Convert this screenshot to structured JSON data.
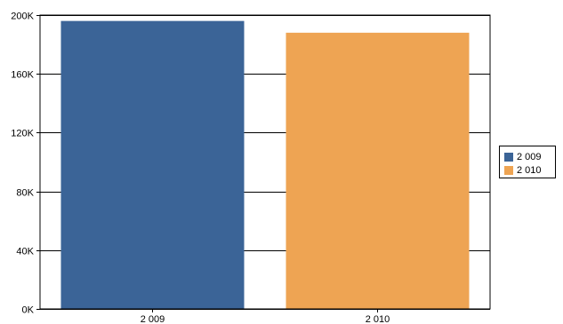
{
  "chart_data": {
    "type": "bar",
    "categories": [
      "2 009",
      "2 010"
    ],
    "values": [
      196000,
      188000
    ],
    "colors": [
      "#3b6497",
      "#eea453"
    ],
    "ylim": [
      0,
      200000
    ],
    "yticks": [
      0,
      40000,
      80000,
      120000,
      160000,
      200000
    ],
    "ytick_labels": [
      "0K",
      "40K",
      "80K",
      "120K",
      "160K",
      "200K"
    ],
    "grid": true,
    "legend": {
      "position": "right",
      "entries": [
        "2 009",
        "2 010"
      ]
    }
  }
}
